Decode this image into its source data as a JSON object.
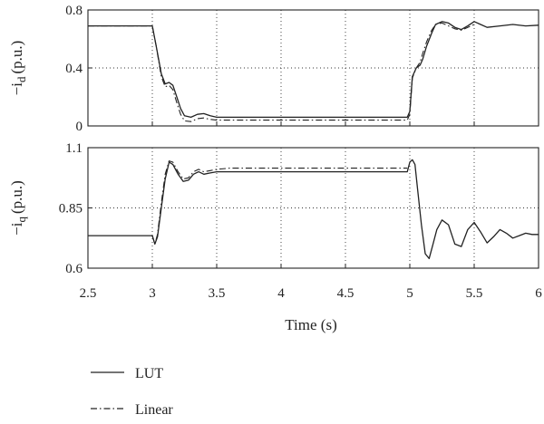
{
  "chart_data": [
    {
      "type": "line",
      "ylabel": "−i",
      "ylabel_sub": "d",
      "ylabel_unit": "(p.u.)",
      "xlim": [
        2.5,
        6
      ],
      "ylim": [
        0,
        0.8
      ],
      "yticks": [
        "0",
        "0.4",
        "0.8"
      ],
      "ytick_values": [
        0,
        0.4,
        0.8
      ],
      "grid": true,
      "series": [
        {
          "name": "LUT",
          "style": "solid",
          "x": [
            2.5,
            2.95,
            3.0,
            3.03,
            3.07,
            3.1,
            3.13,
            3.16,
            3.19,
            3.22,
            3.25,
            3.3,
            3.35,
            3.4,
            3.45,
            3.5,
            3.6,
            4.0,
            4.5,
            4.98,
            5.0,
            5.02,
            5.05,
            5.08,
            5.1,
            5.13,
            5.17,
            5.2,
            5.25,
            5.3,
            5.35,
            5.4,
            5.45,
            5.5,
            5.55,
            5.6,
            5.7,
            5.8,
            5.9,
            6.0
          ],
          "y": [
            0.69,
            0.69,
            0.69,
            0.55,
            0.36,
            0.29,
            0.3,
            0.28,
            0.2,
            0.12,
            0.07,
            0.06,
            0.08,
            0.085,
            0.07,
            0.06,
            0.06,
            0.06,
            0.06,
            0.06,
            0.1,
            0.34,
            0.4,
            0.42,
            0.46,
            0.55,
            0.64,
            0.7,
            0.72,
            0.71,
            0.68,
            0.665,
            0.69,
            0.72,
            0.7,
            0.68,
            0.69,
            0.7,
            0.69,
            0.695
          ]
        },
        {
          "name": "Linear",
          "style": "dashdot",
          "x": [
            2.5,
            2.95,
            3.0,
            3.03,
            3.07,
            3.1,
            3.13,
            3.16,
            3.19,
            3.22,
            3.25,
            3.3,
            3.35,
            3.4,
            3.45,
            3.5,
            3.6,
            4.0,
            4.5,
            4.98,
            5.0,
            5.02,
            5.05,
            5.08,
            5.1,
            5.13,
            5.17,
            5.2,
            5.25,
            5.3,
            5.35,
            5.4,
            5.45,
            5.5
          ],
          "y": [
            0.69,
            0.69,
            0.69,
            0.55,
            0.34,
            0.27,
            0.28,
            0.25,
            0.16,
            0.08,
            0.035,
            0.03,
            0.05,
            0.055,
            0.045,
            0.04,
            0.04,
            0.04,
            0.04,
            0.04,
            0.08,
            0.33,
            0.4,
            0.44,
            0.5,
            0.58,
            0.66,
            0.7,
            0.71,
            0.69,
            0.67,
            0.66,
            0.68,
            0.7
          ]
        }
      ]
    },
    {
      "type": "line",
      "xlabel": "Time (s)",
      "ylabel": "−i",
      "ylabel_sub": "q",
      "ylabel_unit": "(p.u.)",
      "xlim": [
        2.5,
        6
      ],
      "ylim": [
        0.6,
        1.1
      ],
      "xticks": [
        "2.5",
        "3",
        "3.5",
        "4",
        "4.5",
        "5",
        "5.5",
        "6"
      ],
      "xtick_values": [
        2.5,
        3,
        3.5,
        4,
        4.5,
        5,
        5.5,
        6
      ],
      "yticks": [
        "0.6",
        "0.85",
        "1.1"
      ],
      "ytick_values": [
        0.6,
        0.85,
        1.1
      ],
      "grid": true,
      "series": [
        {
          "name": "LUT",
          "style": "solid",
          "x": [
            2.5,
            2.95,
            3.0,
            3.02,
            3.04,
            3.07,
            3.1,
            3.13,
            3.16,
            3.2,
            3.24,
            3.28,
            3.32,
            3.36,
            3.4,
            3.45,
            3.5,
            3.6,
            4.0,
            4.5,
            4.98,
            5.0,
            5.02,
            5.04,
            5.06,
            5.09,
            5.12,
            5.15,
            5.18,
            5.21,
            5.25,
            5.3,
            5.35,
            5.4,
            5.45,
            5.5,
            5.55,
            5.6,
            5.65,
            5.7,
            5.75,
            5.8,
            5.85,
            5.9,
            5.95,
            6.0
          ],
          "y": [
            0.735,
            0.735,
            0.735,
            0.7,
            0.73,
            0.85,
            0.97,
            1.04,
            1.03,
            0.99,
            0.96,
            0.965,
            0.99,
            1.0,
            0.99,
            0.995,
            1.0,
            1.0,
            1.0,
            1.0,
            1.0,
            1.04,
            1.05,
            1.03,
            0.93,
            0.78,
            0.66,
            0.64,
            0.7,
            0.76,
            0.8,
            0.78,
            0.7,
            0.69,
            0.76,
            0.79,
            0.75,
            0.705,
            0.73,
            0.76,
            0.745,
            0.725,
            0.735,
            0.745,
            0.74,
            0.74
          ]
        },
        {
          "name": "Linear",
          "style": "dashdot",
          "x": [
            3.0,
            3.02,
            3.04,
            3.07,
            3.1,
            3.13,
            3.16,
            3.2,
            3.24,
            3.28,
            3.32,
            3.36,
            3.4,
            3.45,
            3.5,
            3.6,
            4.0,
            4.5,
            4.98
          ],
          "y": [
            0.735,
            0.7,
            0.74,
            0.87,
            0.99,
            1.045,
            1.04,
            1.0,
            0.97,
            0.975,
            1.0,
            1.01,
            1.0,
            1.005,
            1.01,
            1.015,
            1.015,
            1.015,
            1.015
          ]
        }
      ]
    }
  ],
  "legend": {
    "position": "bottom-left",
    "entries": [
      {
        "label": "LUT",
        "style": "solid"
      },
      {
        "label": "Linear",
        "style": "dashdot"
      }
    ]
  }
}
